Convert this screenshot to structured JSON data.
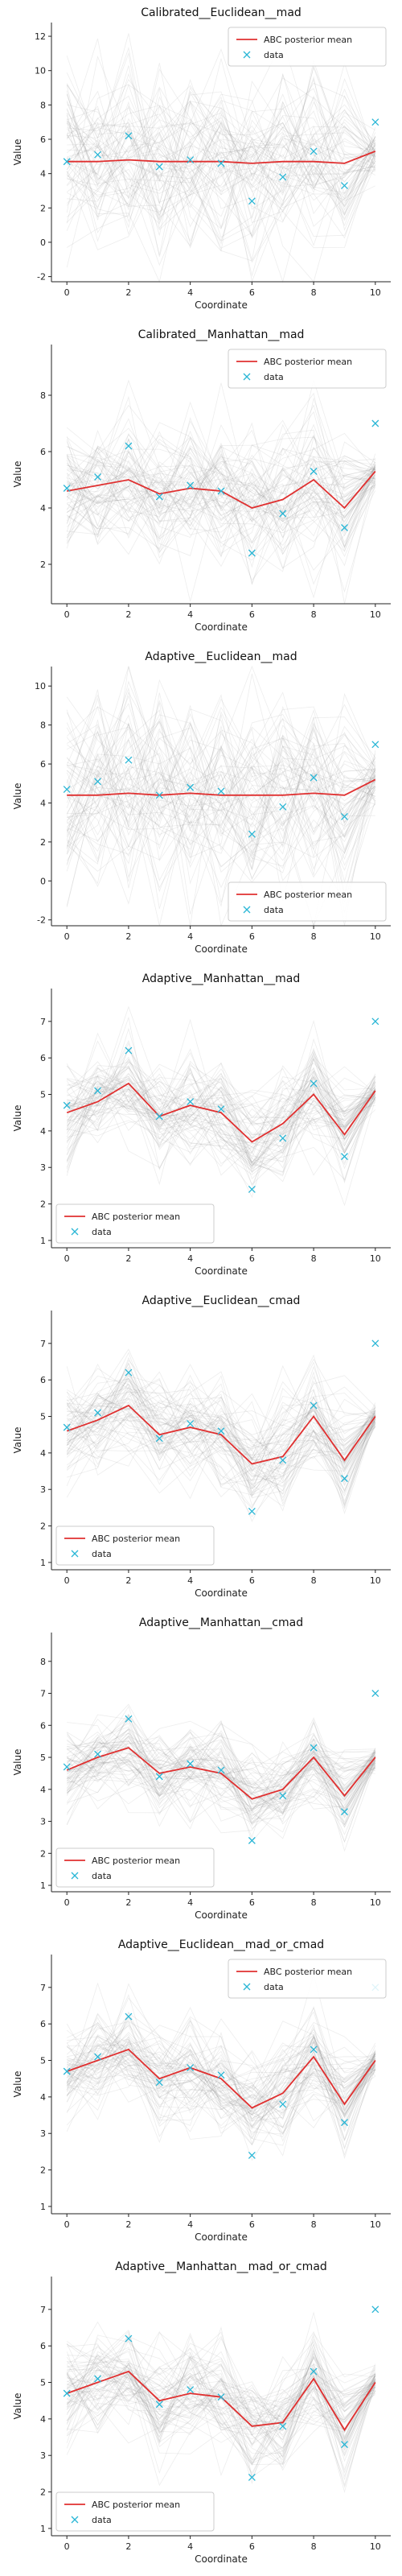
{
  "colors": {
    "mean_line": "#e03030",
    "data_marker": "#29b6d6",
    "trajectory": "#8c8c8c",
    "axis": "#222222",
    "background": "#ffffff"
  },
  "legend_labels": {
    "mean": "ABC posterior mean",
    "data": "data"
  },
  "chart_data": [
    {
      "type": "line",
      "title": "Calibrated__Euclidean__mad",
      "xlabel": "Coordinate",
      "ylabel": "Value",
      "xlim": [
        -0.5,
        10.5
      ],
      "ylim": [
        -2.3,
        12.8
      ],
      "yticks": [
        -2,
        0,
        2,
        4,
        6,
        8,
        10,
        12
      ],
      "xticks": [
        0,
        2,
        4,
        6,
        8,
        10
      ],
      "legend_position": "top-right",
      "band": "wide",
      "series": [
        {
          "name": "ABC posterior mean",
          "x": [
            0,
            1,
            2,
            3,
            4,
            5,
            6,
            7,
            8,
            9,
            10
          ],
          "values": [
            4.7,
            4.7,
            4.8,
            4.7,
            4.7,
            4.7,
            4.6,
            4.7,
            4.7,
            4.6,
            5.3
          ]
        },
        {
          "name": "data",
          "x": [
            0,
            1,
            2,
            3,
            4,
            5,
            6,
            7,
            8,
            9,
            10
          ],
          "values": [
            4.7,
            5.1,
            6.2,
            4.4,
            4.8,
            4.6,
            2.4,
            3.8,
            5.3,
            3.3,
            7.0
          ]
        }
      ]
    },
    {
      "type": "line",
      "title": "Calibrated__Manhattan__mad",
      "xlabel": "Coordinate",
      "ylabel": "Value",
      "xlim": [
        -0.5,
        10.5
      ],
      "ylim": [
        0.6,
        9.8
      ],
      "yticks": [
        2,
        4,
        6,
        8
      ],
      "xticks": [
        0,
        2,
        4,
        6,
        8,
        10
      ],
      "legend_position": "top-right",
      "band": "medium",
      "series": [
        {
          "name": "ABC posterior mean",
          "x": [
            0,
            1,
            2,
            3,
            4,
            5,
            6,
            7,
            8,
            9,
            10
          ],
          "values": [
            4.6,
            4.8,
            5.0,
            4.5,
            4.7,
            4.6,
            4.0,
            4.3,
            5.0,
            4.0,
            5.3
          ]
        },
        {
          "name": "data",
          "x": [
            0,
            1,
            2,
            3,
            4,
            5,
            6,
            7,
            8,
            9,
            10
          ],
          "values": [
            4.7,
            5.1,
            6.2,
            4.4,
            4.8,
            4.6,
            2.4,
            3.8,
            5.3,
            3.3,
            7.0
          ]
        }
      ]
    },
    {
      "type": "line",
      "title": "Adaptive__Euclidean__mad",
      "xlabel": "Coordinate",
      "ylabel": "Value",
      "xlim": [
        -0.5,
        10.5
      ],
      "ylim": [
        -2.3,
        11.0
      ],
      "yticks": [
        -2,
        0,
        2,
        4,
        6,
        8,
        10
      ],
      "xticks": [
        0,
        2,
        4,
        6,
        8,
        10
      ],
      "legend_position": "bottom-right",
      "band": "wide",
      "series": [
        {
          "name": "ABC posterior mean",
          "x": [
            0,
            1,
            2,
            3,
            4,
            5,
            6,
            7,
            8,
            9,
            10
          ],
          "values": [
            4.4,
            4.4,
            4.5,
            4.4,
            4.5,
            4.4,
            4.4,
            4.4,
            4.5,
            4.4,
            5.2
          ]
        },
        {
          "name": "data",
          "x": [
            0,
            1,
            2,
            3,
            4,
            5,
            6,
            7,
            8,
            9,
            10
          ],
          "values": [
            4.7,
            5.1,
            6.2,
            4.4,
            4.8,
            4.6,
            2.4,
            3.8,
            5.3,
            3.3,
            7.0
          ]
        }
      ]
    },
    {
      "type": "line",
      "title": "Adaptive__Manhattan__mad",
      "xlabel": "Coordinate",
      "ylabel": "Value",
      "xlim": [
        -0.5,
        10.5
      ],
      "ylim": [
        0.8,
        7.9
      ],
      "yticks": [
        1,
        2,
        3,
        4,
        5,
        6,
        7
      ],
      "xticks": [
        0,
        2,
        4,
        6,
        8,
        10
      ],
      "legend_position": "bottom-left",
      "band": "narrow",
      "series": [
        {
          "name": "ABC posterior mean",
          "x": [
            0,
            1,
            2,
            3,
            4,
            5,
            6,
            7,
            8,
            9,
            10
          ],
          "values": [
            4.5,
            4.8,
            5.3,
            4.4,
            4.7,
            4.5,
            3.7,
            4.2,
            5.0,
            3.9,
            5.1
          ]
        },
        {
          "name": "data",
          "x": [
            0,
            1,
            2,
            3,
            4,
            5,
            6,
            7,
            8,
            9,
            10
          ],
          "values": [
            4.7,
            5.1,
            6.2,
            4.4,
            4.8,
            4.6,
            2.4,
            3.8,
            5.3,
            3.3,
            7.0
          ]
        }
      ]
    },
    {
      "type": "line",
      "title": "Adaptive__Euclidean__cmad",
      "xlabel": "Coordinate",
      "ylabel": "Value",
      "xlim": [
        -0.5,
        10.5
      ],
      "ylim": [
        0.8,
        7.9
      ],
      "yticks": [
        1,
        2,
        3,
        4,
        5,
        6,
        7
      ],
      "xticks": [
        0,
        2,
        4,
        6,
        8,
        10
      ],
      "legend_position": "bottom-left",
      "band": "narrow",
      "series": [
        {
          "name": "ABC posterior mean",
          "x": [
            0,
            1,
            2,
            3,
            4,
            5,
            6,
            7,
            8,
            9,
            10
          ],
          "values": [
            4.6,
            4.9,
            5.3,
            4.5,
            4.7,
            4.5,
            3.7,
            3.9,
            5.0,
            3.8,
            5.0
          ]
        },
        {
          "name": "data",
          "x": [
            0,
            1,
            2,
            3,
            4,
            5,
            6,
            7,
            8,
            9,
            10
          ],
          "values": [
            4.7,
            5.1,
            6.2,
            4.4,
            4.8,
            4.6,
            2.4,
            3.8,
            5.3,
            3.3,
            7.0
          ]
        }
      ]
    },
    {
      "type": "line",
      "title": "Adaptive__Manhattan__cmad",
      "xlabel": "Coordinate",
      "ylabel": "Value",
      "xlim": [
        -0.5,
        10.5
      ],
      "ylim": [
        0.8,
        8.9
      ],
      "yticks": [
        1,
        2,
        3,
        4,
        5,
        6,
        7,
        8
      ],
      "xticks": [
        0,
        2,
        4,
        6,
        8,
        10
      ],
      "legend_position": "bottom-left",
      "band": "narrow",
      "series": [
        {
          "name": "ABC posterior mean",
          "x": [
            0,
            1,
            2,
            3,
            4,
            5,
            6,
            7,
            8,
            9,
            10
          ],
          "values": [
            4.6,
            5.0,
            5.3,
            4.5,
            4.7,
            4.5,
            3.7,
            4.0,
            5.0,
            3.8,
            5.0
          ]
        },
        {
          "name": "data",
          "x": [
            0,
            1,
            2,
            3,
            4,
            5,
            6,
            7,
            8,
            9,
            10
          ],
          "values": [
            4.7,
            5.1,
            6.2,
            4.4,
            4.8,
            4.6,
            2.4,
            3.8,
            5.3,
            3.3,
            7.0
          ]
        }
      ]
    },
    {
      "type": "line",
      "title": "Adaptive__Euclidean__mad_or_cmad",
      "xlabel": "Coordinate",
      "ylabel": "Value",
      "xlim": [
        -0.5,
        10.5
      ],
      "ylim": [
        0.8,
        7.9
      ],
      "yticks": [
        1,
        2,
        3,
        4,
        5,
        6,
        7
      ],
      "xticks": [
        0,
        2,
        4,
        6,
        8,
        10
      ],
      "legend_position": "top-right",
      "band": "narrow",
      "series": [
        {
          "name": "ABC posterior mean",
          "x": [
            0,
            1,
            2,
            3,
            4,
            5,
            6,
            7,
            8,
            9,
            10
          ],
          "values": [
            4.7,
            5.0,
            5.3,
            4.5,
            4.8,
            4.5,
            3.7,
            4.1,
            5.1,
            3.8,
            5.0
          ]
        },
        {
          "name": "data",
          "x": [
            0,
            1,
            2,
            3,
            4,
            5,
            6,
            7,
            8,
            9,
            10
          ],
          "values": [
            4.7,
            5.1,
            6.2,
            4.4,
            4.8,
            4.6,
            2.4,
            3.8,
            5.3,
            3.3,
            7.0
          ]
        }
      ]
    },
    {
      "type": "line",
      "title": "Adaptive__Manhattan__mad_or_cmad",
      "xlabel": "Coordinate",
      "ylabel": "Value",
      "xlim": [
        -0.5,
        10.5
      ],
      "ylim": [
        0.8,
        7.9
      ],
      "yticks": [
        1,
        2,
        3,
        4,
        5,
        6,
        7
      ],
      "xticks": [
        0,
        2,
        4,
        6,
        8,
        10
      ],
      "legend_position": "bottom-left",
      "band": "narrow",
      "series": [
        {
          "name": "ABC posterior mean",
          "x": [
            0,
            1,
            2,
            3,
            4,
            5,
            6,
            7,
            8,
            9,
            10
          ],
          "values": [
            4.7,
            5.0,
            5.3,
            4.5,
            4.7,
            4.6,
            3.8,
            3.9,
            5.1,
            3.7,
            5.0
          ]
        },
        {
          "name": "data",
          "x": [
            0,
            1,
            2,
            3,
            4,
            5,
            6,
            7,
            8,
            9,
            10
          ],
          "values": [
            4.7,
            5.1,
            6.2,
            4.4,
            4.8,
            4.6,
            2.4,
            3.8,
            5.3,
            3.3,
            7.0
          ]
        }
      ]
    }
  ]
}
